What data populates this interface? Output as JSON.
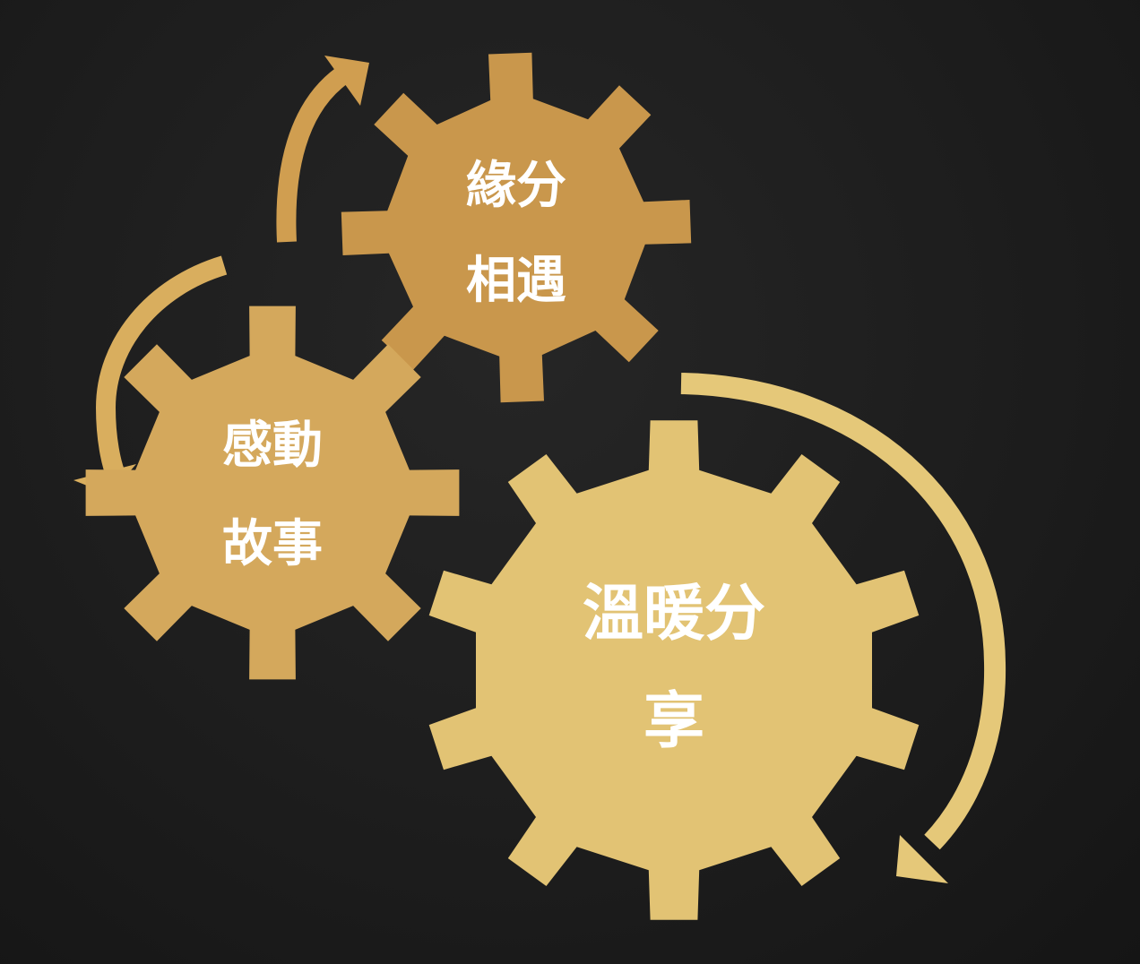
{
  "colors": {
    "background": "#1c1c1c",
    "gear_top": "#c9974c",
    "gear_left": "#d4a85c",
    "gear_big": "#e2c374",
    "arrow_top": "#d09e50",
    "arrow_left": "#d9ae5e",
    "arrow_big": "#e5c879",
    "label": "#ffffff"
  },
  "icons": [
    "gear-icon",
    "curved-arrow-icon"
  ],
  "gears": {
    "top": {
      "line1": "緣分",
      "line2": "相遇"
    },
    "left": {
      "line1": "感動",
      "line2": "故事"
    },
    "big": {
      "line1": "溫暖分",
      "line2": "享"
    }
  }
}
